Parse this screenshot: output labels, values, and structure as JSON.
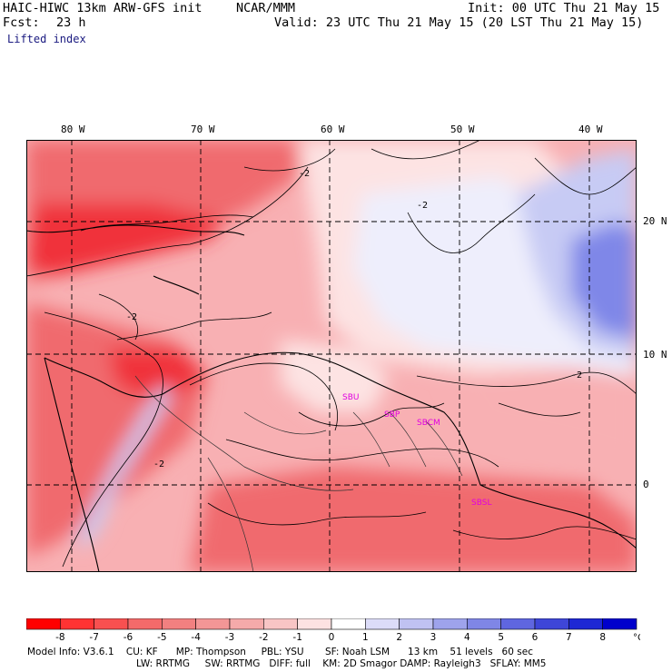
{
  "header": {
    "model": "HAIC-HIWC 13km ARW-GFS init",
    "org": "NCAR/MMM",
    "init": "Init: 00 UTC Thu 21 May 15",
    "fcst_label": "Fcst:",
    "fcst_value": "23 h",
    "valid": "Valid: 23 UTC Thu 21 May 15 (20 LST Thu 21 May 15)",
    "field": "Lifted index"
  },
  "map": {
    "lon_labels": [
      "80 W",
      "70 W",
      "60 W",
      "50 W",
      "40 W"
    ],
    "lat_labels": [
      "20 N",
      "10 N",
      "0"
    ],
    "contour_labels": [
      "-2",
      "-2",
      "-2",
      "-2",
      "-2"
    ],
    "station_labels": [
      "SBU",
      "SBP",
      "SBCM",
      "SBSL"
    ],
    "colors": {
      "red_deep": "#f0333a",
      "red_mid": "#f06a6e",
      "pink": "#f8b0b3",
      "pale_pink": "#fde3e3",
      "white_blue": "#eeeefc",
      "light_blue": "#c7cbf4",
      "blue": "#7f87e8",
      "contour": "#000000",
      "station": "#e000e0"
    }
  },
  "legend": {
    "ticks": [
      "-8",
      "-7",
      "-6",
      "-5",
      "-4",
      "-3",
      "-2",
      "-1",
      "0",
      "1",
      "2",
      "3",
      "4",
      "5",
      "6",
      "7",
      "8"
    ],
    "unit": "°C",
    "colors": [
      "#ff0000",
      "#ff3333",
      "#f85050",
      "#f46a6a",
      "#f28080",
      "#f39696",
      "#f5aaaa",
      "#f8c5c5",
      "#fde2e2",
      "#ffffff",
      "#dcdcf8",
      "#c0c2f2",
      "#9ea3ec",
      "#7f86e6",
      "#5f66e0",
      "#3e46d8",
      "#1e28d4",
      "#0000cc"
    ]
  },
  "footer": {
    "line1": "Model Info: V3.6.1    CU: KF      MP: Thompson     PBL: YSU       SF: Noah LSM      13 km    51 levels   60 sec",
    "line2": "LW: RRTMG     SW: RRTMG   DIFF: full    KM: 2D Smagor DAMP: Rayleigh3   SFLAY: MM5"
  }
}
